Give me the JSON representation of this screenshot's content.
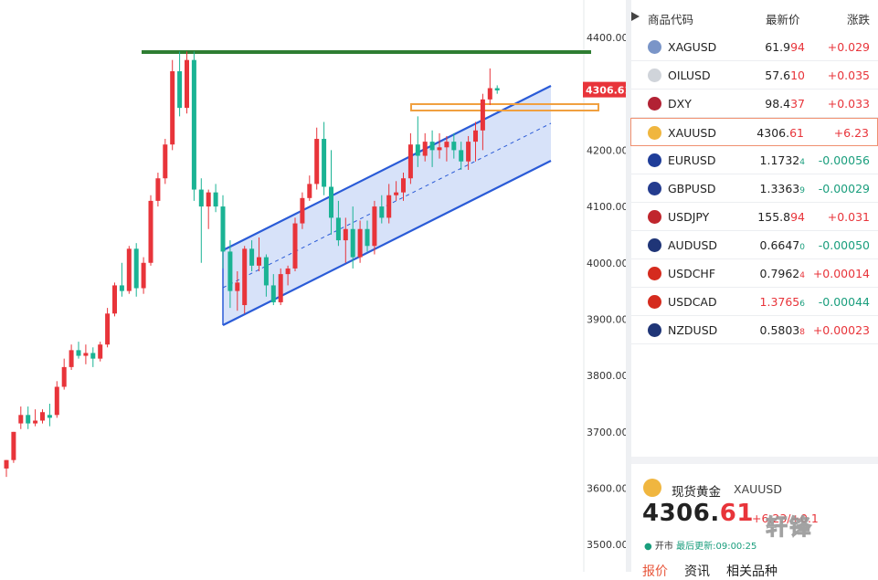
{
  "chart": {
    "y_axis_labels": [
      "4400.00",
      "4300.00",
      "4200.00",
      "4100.00",
      "4000.00",
      "3900.00",
      "3800.00",
      "3700.00",
      "3600.00",
      "3500.00"
    ],
    "y_axis_values": [
      4400,
      4300,
      4200,
      4100,
      4000,
      3900,
      3800,
      3700,
      3600,
      3500
    ],
    "price_tag": "4306.61",
    "price_tag_value": 4306.61,
    "up_color": "#e8343a",
    "down_color": "#1ab394",
    "resistance_color": "#2e7d32",
    "resistance_level": 4374,
    "channel_color": "#2a5bd7",
    "zone_color": "#f0a040",
    "candles": [
      {
        "o": 3635,
        "h": 3650,
        "l": 3620,
        "c": 3650
      },
      {
        "o": 3650,
        "h": 3700,
        "l": 3645,
        "c": 3700
      },
      {
        "o": 3715,
        "h": 3745,
        "l": 3705,
        "c": 3730
      },
      {
        "o": 3730,
        "h": 3745,
        "l": 3705,
        "c": 3715
      },
      {
        "o": 3715,
        "h": 3740,
        "l": 3710,
        "c": 3720
      },
      {
        "o": 3720,
        "h": 3740,
        "l": 3715,
        "c": 3735
      },
      {
        "o": 3730,
        "h": 3750,
        "l": 3710,
        "c": 3725
      },
      {
        "o": 3730,
        "h": 3790,
        "l": 3725,
        "c": 3780
      },
      {
        "o": 3780,
        "h": 3830,
        "l": 3775,
        "c": 3815
      },
      {
        "o": 3815,
        "h": 3855,
        "l": 3810,
        "c": 3845
      },
      {
        "o": 3845,
        "h": 3860,
        "l": 3830,
        "c": 3835
      },
      {
        "o": 3835,
        "h": 3855,
        "l": 3820,
        "c": 3840
      },
      {
        "o": 3840,
        "h": 3850,
        "l": 3815,
        "c": 3830
      },
      {
        "o": 3830,
        "h": 3860,
        "l": 3825,
        "c": 3855
      },
      {
        "o": 3855,
        "h": 3920,
        "l": 3850,
        "c": 3910
      },
      {
        "o": 3910,
        "h": 3965,
        "l": 3905,
        "c": 3960
      },
      {
        "o": 3960,
        "h": 4000,
        "l": 3940,
        "c": 3950
      },
      {
        "o": 3950,
        "h": 4030,
        "l": 3945,
        "c": 4025
      },
      {
        "o": 4025,
        "h": 4035,
        "l": 3940,
        "c": 3955
      },
      {
        "o": 3955,
        "h": 4010,
        "l": 3945,
        "c": 4000
      },
      {
        "o": 4000,
        "h": 4120,
        "l": 3995,
        "c": 4110
      },
      {
        "o": 4110,
        "h": 4160,
        "l": 4100,
        "c": 4150
      },
      {
        "o": 4150,
        "h": 4220,
        "l": 4140,
        "c": 4210
      },
      {
        "o": 4210,
        "h": 4360,
        "l": 4200,
        "c": 4340
      },
      {
        "o": 4340,
        "h": 4375,
        "l": 4260,
        "c": 4275
      },
      {
        "o": 4275,
        "h": 4375,
        "l": 4265,
        "c": 4360
      },
      {
        "o": 4360,
        "h": 4375,
        "l": 4110,
        "c": 4130
      },
      {
        "o": 4130,
        "h": 4150,
        "l": 4000,
        "c": 4100
      },
      {
        "o": 4100,
        "h": 4130,
        "l": 4060,
        "c": 4125
      },
      {
        "o": 4125,
        "h": 4140,
        "l": 4090,
        "c": 4100
      },
      {
        "o": 4100,
        "h": 4120,
        "l": 3990,
        "c": 4020
      },
      {
        "o": 4020,
        "h": 4040,
        "l": 3920,
        "c": 3950
      },
      {
        "o": 3950,
        "h": 3985,
        "l": 3915,
        "c": 3965
      },
      {
        "o": 3925,
        "h": 4030,
        "l": 3910,
        "c": 4025
      },
      {
        "o": 4025,
        "h": 4040,
        "l": 3985,
        "c": 3995
      },
      {
        "o": 3995,
        "h": 4045,
        "l": 3985,
        "c": 4010
      },
      {
        "o": 4010,
        "h": 4015,
        "l": 3940,
        "c": 3960
      },
      {
        "o": 3960,
        "h": 3980,
        "l": 3925,
        "c": 3930
      },
      {
        "o": 3930,
        "h": 3990,
        "l": 3925,
        "c": 3980
      },
      {
        "o": 3980,
        "h": 3995,
        "l": 3960,
        "c": 3990
      },
      {
        "o": 3990,
        "h": 4080,
        "l": 3985,
        "c": 4070
      },
      {
        "o": 4070,
        "h": 4125,
        "l": 4060,
        "c": 4115
      },
      {
        "o": 4115,
        "h": 4155,
        "l": 4110,
        "c": 4140
      },
      {
        "o": 4140,
        "h": 4240,
        "l": 4130,
        "c": 4220
      },
      {
        "o": 4220,
        "h": 4250,
        "l": 4120,
        "c": 4135
      },
      {
        "o": 4135,
        "h": 4200,
        "l": 4050,
        "c": 4080
      },
      {
        "o": 4080,
        "h": 4110,
        "l": 4030,
        "c": 4040
      },
      {
        "o": 4040,
        "h": 4080,
        "l": 4000,
        "c": 4060
      },
      {
        "o": 4060,
        "h": 4100,
        "l": 3990,
        "c": 4010
      },
      {
        "o": 4010,
        "h": 4075,
        "l": 4000,
        "c": 4060
      },
      {
        "o": 4060,
        "h": 4075,
        "l": 4020,
        "c": 4030
      },
      {
        "o": 4030,
        "h": 4110,
        "l": 4015,
        "c": 4100
      },
      {
        "o": 4100,
        "h": 4120,
        "l": 4070,
        "c": 4080
      },
      {
        "o": 4080,
        "h": 4140,
        "l": 4070,
        "c": 4120
      },
      {
        "o": 4120,
        "h": 4145,
        "l": 4110,
        "c": 4125
      },
      {
        "o": 4125,
        "h": 4160,
        "l": 4110,
        "c": 4150
      },
      {
        "o": 4150,
        "h": 4230,
        "l": 4140,
        "c": 4210
      },
      {
        "o": 4210,
        "h": 4260,
        "l": 4170,
        "c": 4190
      },
      {
        "o": 4190,
        "h": 4230,
        "l": 4180,
        "c": 4215
      },
      {
        "o": 4215,
        "h": 4235,
        "l": 4170,
        "c": 4200
      },
      {
        "o": 4200,
        "h": 4230,
        "l": 4185,
        "c": 4205
      },
      {
        "o": 4205,
        "h": 4225,
        "l": 4180,
        "c": 4215
      },
      {
        "o": 4215,
        "h": 4230,
        "l": 4185,
        "c": 4200
      },
      {
        "o": 4200,
        "h": 4215,
        "l": 4165,
        "c": 4180
      },
      {
        "o": 4180,
        "h": 4225,
        "l": 4165,
        "c": 4215
      },
      {
        "o": 4215,
        "h": 4250,
        "l": 4180,
        "c": 4235
      },
      {
        "o": 4235,
        "h": 4300,
        "l": 4200,
        "c": 4290
      },
      {
        "o": 4290,
        "h": 4345,
        "l": 4280,
        "c": 4310
      },
      {
        "o": 4310,
        "h": 4315,
        "l": 4300,
        "c": 4306
      }
    ]
  },
  "watchlist": {
    "headers": {
      "symbol": "商品代码",
      "last": "最新价",
      "change": "涨跌"
    },
    "rows": [
      {
        "symbol": "XAGUSD",
        "last": "61.9",
        "last_red": "94",
        "last_sub": "",
        "change": "+0.029",
        "dir": "up",
        "icon": "silver-icon",
        "icon_color": "#7a95c8"
      },
      {
        "symbol": "OILUSD",
        "last": "57.6",
        "last_red": "10",
        "last_sub": "",
        "change": "+0.035",
        "dir": "up",
        "icon": "oil-drop-icon",
        "icon_color": "#d0d4da"
      },
      {
        "symbol": "DXY",
        "last": "98.4",
        "last_red": "37",
        "last_sub": "",
        "change": "+0.033",
        "dir": "up",
        "icon": "us-flag-icon",
        "icon_color": "#b22234"
      },
      {
        "symbol": "XAUUSD",
        "last": "4306.",
        "last_red": "61",
        "last_sub": "",
        "change": "+6.23",
        "dir": "up",
        "icon": "gold-icon",
        "icon_color": "#f0b63f"
      },
      {
        "symbol": "EURUSD",
        "last": "1.1732",
        "last_red": "",
        "last_sub": "4",
        "change": "-0.00056",
        "dir": "down",
        "icon": "eu-flag-icon",
        "icon_color": "#1f3d99"
      },
      {
        "symbol": "GBPUSD",
        "last": "1.3363",
        "last_red": "",
        "last_sub": "9",
        "change": "-0.00029",
        "dir": "down",
        "icon": "uk-flag-icon",
        "icon_color": "#243c8f"
      },
      {
        "symbol": "USDJPY",
        "last": "155.8",
        "last_red": "94",
        "last_sub": "",
        "change": "+0.031",
        "dir": "up",
        "icon": "jp-flag-icon",
        "icon_color": "#c0262d"
      },
      {
        "symbol": "AUDUSD",
        "last": "0.6647",
        "last_red": "",
        "last_sub": "0",
        "change": "-0.00050",
        "dir": "down",
        "icon": "au-flag-icon",
        "icon_color": "#1f3577"
      },
      {
        "symbol": "USDCHF",
        "last": "0.7962",
        "last_red": "",
        "last_sub": "4",
        "change": "+0.00014",
        "dir": "up",
        "icon": "ch-flag-icon",
        "icon_color": "#d52b1e"
      },
      {
        "symbol": "USDCAD",
        "last": "1.3765",
        "last_red": "",
        "last_sub": "6",
        "change": "-0.00044",
        "dir": "down",
        "icon": "ca-flag-icon",
        "icon_color": "#d52b1e",
        "last_color": "#e8343a"
      },
      {
        "symbol": "NZDUSD",
        "last": "0.5803",
        "last_red": "",
        "last_sub": "8",
        "change": "+0.00023",
        "dir": "up",
        "icon": "nz-flag-icon",
        "icon_color": "#1f3577"
      }
    ]
  },
  "detail": {
    "name": "现货黄金",
    "symbol": "XAUUSD",
    "price_int": "4306.",
    "price_dec": "61",
    "change": "+6.23/+0.1",
    "status_dot": "●",
    "status": "开市",
    "updated": "最后更新:09:00:25",
    "tabs": [
      "报价",
      "资讯",
      "相关品种"
    ]
  },
  "watermark": "轩锋"
}
